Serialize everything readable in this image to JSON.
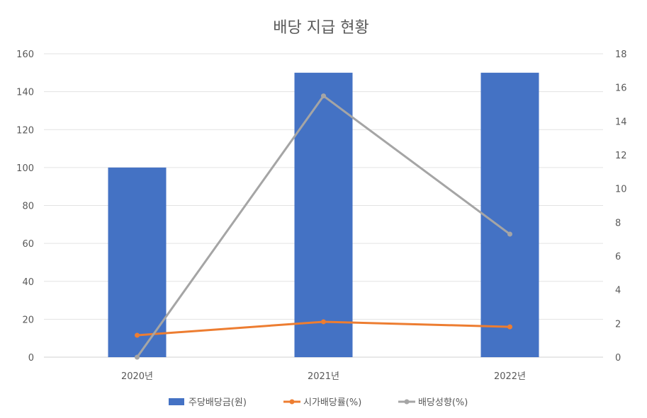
{
  "chart_data": {
    "type": "bar",
    "title": "배당 지급 현황",
    "categories": [
      "2020년",
      "2021년",
      "2022년"
    ],
    "series": [
      {
        "name": "주당배당금(원)",
        "kind": "bar",
        "axis": "left",
        "color": "#4472C4",
        "values": [
          100,
          150,
          150
        ]
      },
      {
        "name": "시가배당률(%)",
        "kind": "line",
        "axis": "right",
        "color": "#ED7D31",
        "values": [
          1.3,
          2.1,
          1.8
        ]
      },
      {
        "name": "배당성향(%)",
        "kind": "line",
        "axis": "right",
        "color": "#A5A5A5",
        "values": [
          0,
          15.5,
          7.3
        ]
      }
    ],
    "y_left": {
      "min": 0,
      "max": 160,
      "ticks": [
        "0",
        "20",
        "40",
        "60",
        "80",
        "100",
        "120",
        "140",
        "160"
      ]
    },
    "y_right": {
      "min": 0,
      "max": 18,
      "ticks": [
        "0",
        "2",
        "4",
        "6",
        "8",
        "10",
        "12",
        "14",
        "16",
        "18"
      ]
    },
    "grid": true,
    "legend_position": "bottom"
  }
}
